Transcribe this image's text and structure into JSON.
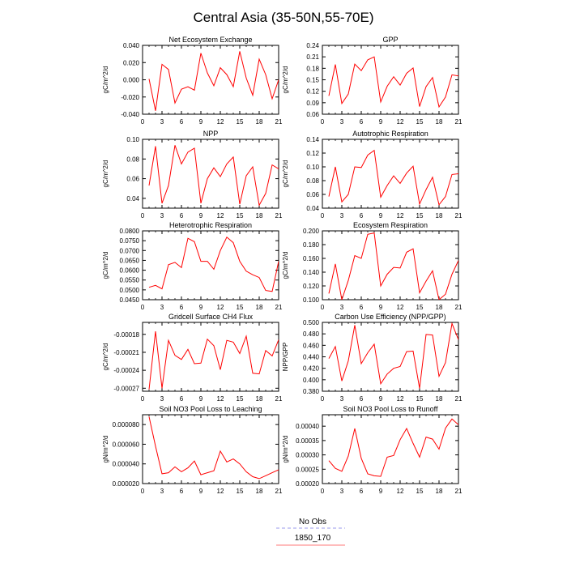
{
  "figure": {
    "title": "Central Asia (35-50N,55-70E)",
    "legend": [
      {
        "label": "No Obs",
        "color": "#9a9aee",
        "style": "dashed"
      },
      {
        "label": "1850_170",
        "color": "#ff7a7a",
        "style": "solid"
      }
    ]
  },
  "colors": {
    "series": "#ff0000"
  },
  "chart_data": [
    {
      "type": "line",
      "title": "Net Ecosystem Exchange",
      "ylabel": "gC/m^2/d",
      "xlim": [
        0,
        21
      ],
      "ylim": [
        -0.04,
        0.04
      ],
      "xticks": [
        0,
        3,
        6,
        9,
        12,
        15,
        18,
        21
      ],
      "yticks": [
        -0.04,
        -0.02,
        0.0,
        0.02,
        0.04
      ],
      "ytick_labels": [
        "-0.040",
        "-0.020",
        "0.000",
        "0.020",
        "0.040"
      ],
      "x": [
        1,
        2,
        3,
        4,
        5,
        6,
        7,
        8,
        9,
        10,
        11,
        12,
        13,
        14,
        15,
        16,
        17,
        18,
        19,
        20,
        21
      ],
      "series": [
        {
          "values": [
            0.001,
            -0.036,
            0.018,
            0.012,
            -0.027,
            -0.011,
            -0.008,
            -0.012,
            0.031,
            0.008,
            -0.007,
            0.014,
            0.006,
            -0.008,
            0.033,
            0.002,
            -0.018,
            0.024,
            0.006,
            -0.022,
            0.0
          ]
        }
      ]
    },
    {
      "type": "line",
      "title": "GPP",
      "ylabel": "gC/m^2/d",
      "xlim": [
        0,
        21
      ],
      "ylim": [
        0.06,
        0.24
      ],
      "xticks": [
        0,
        3,
        6,
        9,
        12,
        15,
        18,
        21
      ],
      "yticks": [
        0.06,
        0.09,
        0.12,
        0.15,
        0.18,
        0.21,
        0.24
      ],
      "ytick_labels": [
        "0.06",
        "0.09",
        "0.12",
        "0.15",
        "0.18",
        "0.21",
        "0.24"
      ],
      "x": [
        1,
        2,
        3,
        4,
        5,
        6,
        7,
        8,
        9,
        10,
        11,
        12,
        13,
        14,
        15,
        16,
        17,
        18,
        19,
        20,
        21
      ],
      "series": [
        {
          "values": [
            0.108,
            0.19,
            0.088,
            0.113,
            0.191,
            0.174,
            0.202,
            0.21,
            0.092,
            0.133,
            0.158,
            0.136,
            0.167,
            0.181,
            0.08,
            0.132,
            0.156,
            0.079,
            0.105,
            0.163,
            0.16
          ]
        }
      ]
    },
    {
      "type": "line",
      "title": "NPP",
      "ylabel": "gC/m^2/d",
      "xlim": [
        0,
        21
      ],
      "ylim": [
        0.03,
        0.1
      ],
      "xticks": [
        0,
        3,
        6,
        9,
        12,
        15,
        18,
        21
      ],
      "yticks": [
        0.04,
        0.06,
        0.08,
        0.1
      ],
      "ytick_labels": [
        "0.04",
        "0.06",
        "0.08",
        "0.10"
      ],
      "x": [
        1,
        2,
        3,
        4,
        5,
        6,
        7,
        8,
        9,
        10,
        11,
        12,
        13,
        14,
        15,
        16,
        17,
        18,
        19,
        20,
        21
      ],
      "series": [
        {
          "values": [
            0.053,
            0.093,
            0.035,
            0.053,
            0.094,
            0.075,
            0.087,
            0.091,
            0.035,
            0.06,
            0.071,
            0.062,
            0.075,
            0.082,
            0.034,
            0.063,
            0.072,
            0.033,
            0.045,
            0.074,
            0.07
          ]
        }
      ]
    },
    {
      "type": "line",
      "title": "Autotrophic Respiration",
      "ylabel": "gC/m^2/d",
      "xlim": [
        0,
        21
      ],
      "ylim": [
        0.04,
        0.14
      ],
      "xticks": [
        0,
        3,
        6,
        9,
        12,
        15,
        18,
        21
      ],
      "yticks": [
        0.04,
        0.06,
        0.08,
        0.1,
        0.12,
        0.14
      ],
      "ytick_labels": [
        "0.04",
        "0.06",
        "0.08",
        "0.10",
        "0.12",
        "0.14"
      ],
      "x": [
        1,
        2,
        3,
        4,
        5,
        6,
        7,
        8,
        9,
        10,
        11,
        12,
        13,
        14,
        15,
        16,
        17,
        18,
        19,
        20,
        21
      ],
      "series": [
        {
          "values": [
            0.057,
            0.1,
            0.049,
            0.06,
            0.1,
            0.099,
            0.117,
            0.124,
            0.056,
            0.073,
            0.087,
            0.076,
            0.091,
            0.101,
            0.046,
            0.067,
            0.085,
            0.045,
            0.057,
            0.089,
            0.09
          ]
        }
      ]
    },
    {
      "type": "line",
      "title": "Heterotrophic Respiration",
      "ylabel": "gC/m^2/d",
      "xlim": [
        0,
        21
      ],
      "ylim": [
        0.045,
        0.08
      ],
      "xticks": [
        0,
        3,
        6,
        9,
        12,
        15,
        18,
        21
      ],
      "yticks": [
        0.045,
        0.05,
        0.055,
        0.06,
        0.065,
        0.07,
        0.075,
        0.08
      ],
      "ytick_labels": [
        "0.0450",
        "0.0500",
        "0.0550",
        "0.0600",
        "0.0650",
        "0.0700",
        "0.0750",
        "0.0800"
      ],
      "x": [
        1,
        2,
        3,
        4,
        5,
        6,
        7,
        8,
        9,
        10,
        11,
        12,
        13,
        14,
        15,
        16,
        17,
        18,
        19,
        20,
        21
      ],
      "series": [
        {
          "values": [
            0.0513,
            0.0523,
            0.0505,
            0.0628,
            0.064,
            0.0613,
            0.0762,
            0.0745,
            0.0645,
            0.0645,
            0.0605,
            0.07,
            0.0768,
            0.074,
            0.0645,
            0.0595,
            0.0577,
            0.0563,
            0.0497,
            0.0492,
            0.0645
          ]
        }
      ]
    },
    {
      "type": "line",
      "title": "Ecosystem Respiration",
      "ylabel": "gC/m^2/d",
      "xlim": [
        0,
        21
      ],
      "ylim": [
        0.1,
        0.2
      ],
      "xticks": [
        0,
        3,
        6,
        9,
        12,
        15,
        18,
        21
      ],
      "yticks": [
        0.1,
        0.12,
        0.14,
        0.16,
        0.18,
        0.2
      ],
      "ytick_labels": [
        "0.100",
        "0.120",
        "0.140",
        "0.160",
        "0.180",
        "0.200"
      ],
      "x": [
        1,
        2,
        3,
        4,
        5,
        6,
        7,
        8,
        9,
        10,
        11,
        12,
        13,
        14,
        15,
        16,
        17,
        18,
        19,
        20,
        21
      ],
      "series": [
        {
          "values": [
            0.109,
            0.152,
            0.1,
            0.128,
            0.164,
            0.16,
            0.195,
            0.197,
            0.12,
            0.137,
            0.147,
            0.146,
            0.169,
            0.174,
            0.11,
            0.127,
            0.142,
            0.1,
            0.108,
            0.137,
            0.157
          ]
        }
      ]
    },
    {
      "type": "line",
      "title": "Gridcell Surface CH4 Flux",
      "ylabel": "gC/m^2/d",
      "xlim": [
        0,
        21
      ],
      "ylim": [
        -0.000275,
        -0.00016
      ],
      "xticks": [
        0,
        3,
        6,
        9,
        12,
        15,
        18,
        21
      ],
      "yticks": [
        -0.00027,
        -0.00024,
        -0.00021,
        -0.00018
      ],
      "ytick_labels": [
        "-0.00027",
        "-0.00024",
        "-0.00021",
        "-0.00018"
      ],
      "x": [
        1,
        2,
        3,
        4,
        5,
        6,
        7,
        8,
        9,
        10,
        11,
        12,
        13,
        14,
        15,
        16,
        17,
        18,
        19,
        20,
        21
      ],
      "series": [
        {
          "values": [
            -0.000272,
            -0.000175,
            -0.00027,
            -0.00019,
            -0.000215,
            -0.000222,
            -0.000205,
            -0.000229,
            -0.000228,
            -0.000188,
            -0.000199,
            -0.000239,
            -0.00019,
            -0.000193,
            -0.000212,
            -0.000183,
            -0.000245,
            -0.000246,
            -0.000207,
            -0.000216,
            -0.000189
          ]
        }
      ]
    },
    {
      "type": "line",
      "title": "Carbon Use Efficiency (NPP/GPP)",
      "ylabel": "NPP/GPP",
      "xlim": [
        0,
        21
      ],
      "ylim": [
        0.38,
        0.5
      ],
      "xticks": [
        0,
        3,
        6,
        9,
        12,
        15,
        18,
        21
      ],
      "yticks": [
        0.38,
        0.4,
        0.42,
        0.44,
        0.46,
        0.48,
        0.5
      ],
      "ytick_labels": [
        "0.380",
        "0.400",
        "0.420",
        "0.440",
        "0.460",
        "0.480",
        "0.500"
      ],
      "x": [
        1,
        2,
        3,
        4,
        5,
        6,
        7,
        8,
        9,
        10,
        11,
        12,
        13,
        14,
        15,
        16,
        17,
        18,
        19,
        20,
        21
      ],
      "series": [
        {
          "values": [
            0.437,
            0.458,
            0.398,
            0.433,
            0.495,
            0.428,
            0.447,
            0.462,
            0.393,
            0.41,
            0.42,
            0.423,
            0.449,
            0.45,
            0.385,
            0.479,
            0.478,
            0.406,
            0.43,
            0.498,
            0.47
          ]
        }
      ]
    },
    {
      "type": "line",
      "title": "Soil NO3 Pool Loss to Leaching",
      "ylabel": "gN/m^2/d",
      "xlim": [
        0,
        21
      ],
      "ylim": [
        2e-05,
        9e-05
      ],
      "xticks": [
        0,
        3,
        6,
        9,
        12,
        15,
        18,
        21
      ],
      "yticks": [
        2e-05,
        4e-05,
        6e-05,
        8e-05
      ],
      "ytick_labels": [
        "0.000020",
        "0.000040",
        "0.000060",
        "0.000080"
      ],
      "x": [
        1,
        2,
        3,
        4,
        5,
        6,
        7,
        8,
        9,
        10,
        11,
        12,
        13,
        14,
        15,
        16,
        17,
        18,
        19,
        20,
        21
      ],
      "series": [
        {
          "values": [
            8.8e-05,
            5.8e-05,
            3e-05,
            3.1e-05,
            3.7e-05,
            3.2e-05,
            3.6e-05,
            4.3e-05,
            2.9e-05,
            3.1e-05,
            3.3e-05,
            5.3e-05,
            4.2e-05,
            4.5e-05,
            4e-05,
            3.2e-05,
            2.7e-05,
            2.5e-05,
            2.8e-05,
            3.1e-05,
            3.4e-05
          ]
        }
      ]
    },
    {
      "type": "line",
      "title": "Soil NO3 Pool Loss to Runoff",
      "ylabel": "gN/m^2/d",
      "xlim": [
        0,
        21
      ],
      "ylim": [
        0.0002,
        0.00044
      ],
      "xticks": [
        0,
        3,
        6,
        9,
        12,
        15,
        18,
        21
      ],
      "yticks": [
        0.0002,
        0.00025,
        0.0003,
        0.00035,
        0.0004
      ],
      "ytick_labels": [
        "0.00020",
        "0.00025",
        "0.00030",
        "0.00035",
        "0.00040"
      ],
      "x": [
        1,
        2,
        3,
        4,
        5,
        6,
        7,
        8,
        9,
        10,
        11,
        12,
        13,
        14,
        15,
        16,
        17,
        18,
        19,
        20,
        21
      ],
      "series": [
        {
          "values": [
            0.00028,
            0.000253,
            0.000243,
            0.000296,
            0.000392,
            0.000288,
            0.000234,
            0.000227,
            0.000225,
            0.000292,
            0.000298,
            0.000353,
            0.000392,
            0.00034,
            0.000292,
            0.000362,
            0.000355,
            0.00032,
            0.000393,
            0.000425,
            0.000405
          ]
        }
      ]
    }
  ]
}
